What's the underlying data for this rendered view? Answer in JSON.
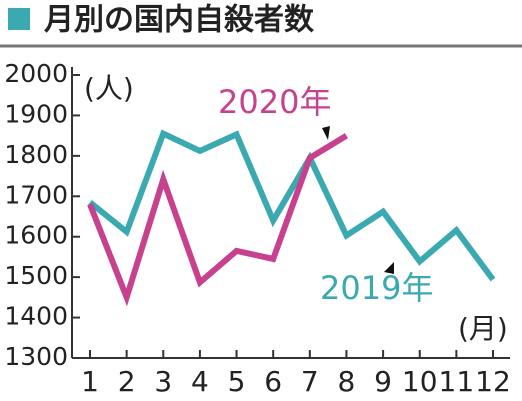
{
  "chart_data": {
    "type": "line",
    "title": "月別の国内自殺者数",
    "y_label": "(人)",
    "x_label": "(月)",
    "categories": [
      "1",
      "2",
      "3",
      "4",
      "5",
      "6",
      "7",
      "8",
      "9",
      "10",
      "11",
      "12"
    ],
    "series": [
      {
        "name": "2019年",
        "color": "#3aa9b0",
        "values": [
          1685,
          1612,
          1855,
          1812,
          1853,
          1640,
          1795,
          1603,
          1662,
          1539,
          1616,
          1494
        ]
      },
      {
        "name": "2020年",
        "color": "#c8418e",
        "values": [
          1680,
          1450,
          1742,
          1487,
          1565,
          1545,
          1795,
          1850,
          null,
          null,
          null,
          null
        ]
      }
    ],
    "ylim": [
      1300,
      2000
    ],
    "yticks": [
      1300,
      1400,
      1500,
      1600,
      1700,
      1800,
      1900,
      2000
    ]
  }
}
